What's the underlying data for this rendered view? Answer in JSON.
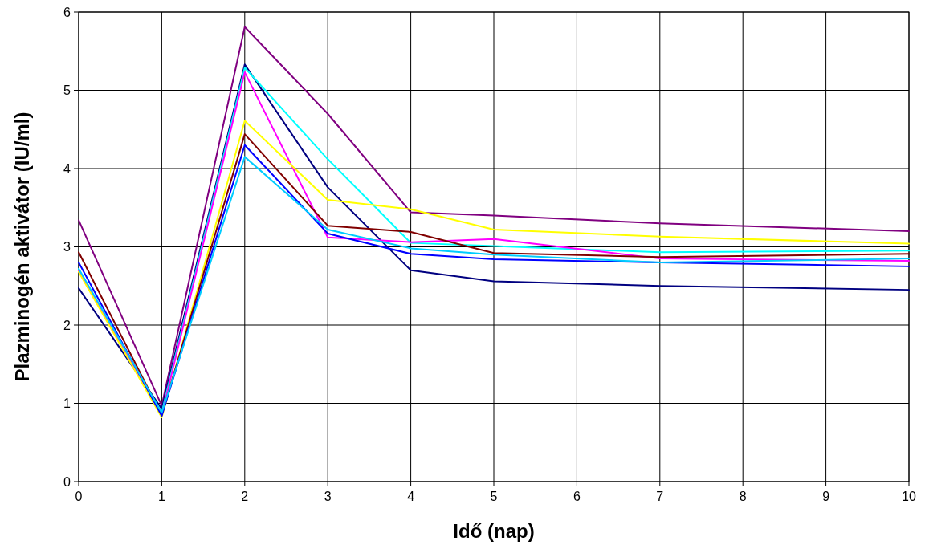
{
  "chart_data": {
    "type": "line",
    "xlabel": "Idő (nap)",
    "ylabel": "Plazminogén aktivátor (IU/ml)",
    "x": [
      0,
      1,
      2,
      3,
      4,
      5,
      7,
      10
    ],
    "series": [
      {
        "color": "#800080",
        "values": [
          3.34,
          0.97,
          5.81,
          4.7,
          3.44,
          3.4,
          3.3,
          3.2
        ]
      },
      {
        "color": "#000080",
        "values": [
          2.47,
          0.93,
          5.33,
          3.76,
          2.7,
          2.56,
          2.5,
          2.45
        ]
      },
      {
        "color": "#00ffff",
        "values": [
          2.71,
          0.88,
          5.29,
          4.12,
          3.05,
          3.01,
          2.93,
          2.95
        ]
      },
      {
        "color": "#ff00ff",
        "values": [
          2.69,
          0.85,
          5.23,
          3.12,
          3.06,
          3.1,
          2.85,
          2.82
        ]
      },
      {
        "color": "#ffff00",
        "values": [
          2.68,
          0.82,
          4.61,
          3.6,
          3.48,
          3.22,
          3.13,
          3.04
        ]
      },
      {
        "color": "#800000",
        "values": [
          2.93,
          0.85,
          4.44,
          3.27,
          3.19,
          2.92,
          2.87,
          2.91
        ]
      },
      {
        "color": "#0000ff",
        "values": [
          2.8,
          0.84,
          4.3,
          3.17,
          2.91,
          2.84,
          2.8,
          2.75
        ]
      },
      {
        "color": "#00ccff",
        "values": [
          2.72,
          0.88,
          4.15,
          3.22,
          2.98,
          2.9,
          2.8,
          2.85
        ]
      }
    ],
    "xlim": [
      0,
      10
    ],
    "xticks": [
      0,
      1,
      2,
      3,
      4,
      5,
      6,
      7,
      8,
      9,
      10
    ],
    "ylim": [
      0,
      6
    ],
    "yticks": [
      0,
      1,
      2,
      3,
      4,
      5,
      6
    ],
    "grid": true,
    "marker": "none",
    "line_style": "solid"
  }
}
